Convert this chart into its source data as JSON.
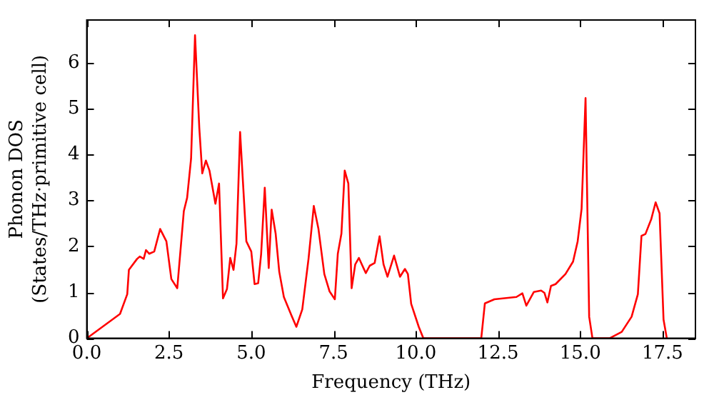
{
  "chart_data": {
    "type": "line",
    "xlabel": "Frequency (THz)",
    "ylabel": "Phonon DOS\n(States/THz·primitive cell)",
    "x": [
      0,
      1.01,
      1.23,
      1.28,
      1.53,
      1.61,
      1.73,
      1.8,
      1.9,
      2.05,
      2.23,
      2.42,
      2.57,
      2.75,
      2.95,
      3.05,
      3.17,
      3.29,
      3.42,
      3.51,
      3.62,
      3.73,
      3.91,
      4.02,
      4.14,
      4.26,
      4.36,
      4.46,
      4.55,
      4.66,
      4.85,
      5.0,
      5.1,
      5.21,
      5.3,
      5.41,
      5.53,
      5.62,
      5.74,
      5.85,
      5.99,
      6.22,
      6.37,
      6.55,
      6.74,
      6.9,
      7.04,
      7.22,
      7.38,
      7.54,
      7.63,
      7.74,
      7.84,
      7.95,
      8.05,
      8.16,
      8.27,
      8.48,
      8.6,
      8.75,
      8.9,
      9.02,
      9.14,
      9.34,
      9.52,
      9.67,
      9.76,
      9.86,
      10.09,
      10.23,
      11.99,
      12.1,
      12.39,
      13.06,
      13.24,
      13.36,
      13.59,
      13.81,
      13.91,
      14.0,
      14.11,
      14.25,
      14.55,
      14.78,
      14.92,
      15.04,
      15.16,
      15.27,
      15.37,
      15.89,
      16.26,
      16.56,
      16.75,
      16.86,
      16.98,
      17.16,
      17.29,
      17.41,
      17.53,
      17.63
    ],
    "series": [
      {
        "color": "#ff0000",
        "values": [
          0,
          0.53,
          0.96,
          1.49,
          1.73,
          1.78,
          1.73,
          1.92,
          1.84,
          1.89,
          2.38,
          2.11,
          1.29,
          1.09,
          2.77,
          3.06,
          3.91,
          6.6,
          4.58,
          3.59,
          3.87,
          3.65,
          2.93,
          3.37,
          0.87,
          1.07,
          1.75,
          1.49,
          2.06,
          4.49,
          2.11,
          1.89,
          1.18,
          1.2,
          1.84,
          3.28,
          1.53,
          2.8,
          2.28,
          1.45,
          0.9,
          0.5,
          0.25,
          0.63,
          1.73,
          2.88,
          2.39,
          1.4,
          1.02,
          0.85,
          1.84,
          2.28,
          3.65,
          3.37,
          1.09,
          1.61,
          1.75,
          1.42,
          1.58,
          1.64,
          2.22,
          1.61,
          1.34,
          1.8,
          1.34,
          1.51,
          1.4,
          0.75,
          0.25,
          0,
          0,
          0.76,
          0.85,
          0.9,
          0.98,
          0.71,
          1.01,
          1.04,
          0.99,
          0.78,
          1.14,
          1.18,
          1.4,
          1.67,
          2.11,
          2.82,
          5.23,
          0.47,
          0,
          0,
          0.14,
          0.47,
          0.96,
          2.23,
          2.27,
          2.6,
          2.96,
          2.72,
          0.41,
          0
        ]
      }
    ],
    "xlim": [
      0,
      18.5
    ],
    "ylim": [
      0,
      6.93
    ],
    "xticks": [
      {
        "value": 0,
        "label": "0.0"
      },
      {
        "value": 2.5,
        "label": "2.5"
      },
      {
        "value": 5,
        "label": "5.0"
      },
      {
        "value": 7.5,
        "label": "7.5"
      },
      {
        "value": 10,
        "label": "10.0"
      },
      {
        "value": 12.5,
        "label": "12.5"
      },
      {
        "value": 15,
        "label": "15.0"
      },
      {
        "value": 17.5,
        "label": "17.5"
      }
    ],
    "yticks": [
      0,
      1,
      2,
      3,
      4,
      5,
      6
    ],
    "grid": false,
    "legend": false,
    "marker": "none",
    "line_style": "solid"
  }
}
